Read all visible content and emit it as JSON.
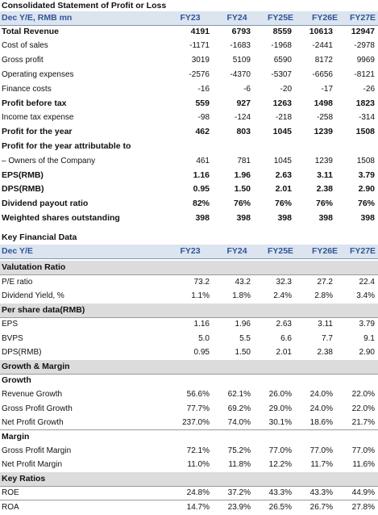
{
  "pl": {
    "title": "Consolidated Statement of Profit or Loss",
    "header": [
      "Dec Y/E, RMB mn",
      "FY23",
      "FY24",
      "FY25E",
      "FY26E",
      "FY27E"
    ],
    "rows": [
      {
        "label": "Total Revenue",
        "values": [
          "4191",
          "6793",
          "8559",
          "10613",
          "12947"
        ],
        "bold": true
      },
      {
        "label": "Cost of sales",
        "values": [
          "-1171",
          "-1683",
          "-1968",
          "-2441",
          "-2978"
        ],
        "bold": false
      },
      {
        "label": "Gross profit",
        "values": [
          "3019",
          "5109",
          "6590",
          "8172",
          "9969"
        ],
        "bold": false
      },
      {
        "label": "Operating expenses",
        "values": [
          "-2576",
          "-4370",
          "-5307",
          "-6656",
          "-8121"
        ],
        "bold": false
      },
      {
        "label": "Finance costs",
        "values": [
          "-16",
          "-6",
          "-20",
          "-17",
          "-26"
        ],
        "bold": false
      },
      {
        "label": "Profit before tax",
        "values": [
          "559",
          "927",
          "1263",
          "1498",
          "1823"
        ],
        "bold": true
      },
      {
        "label": "Income tax expense",
        "values": [
          "-98",
          "-124",
          "-218",
          "-258",
          "-314"
        ],
        "bold": false
      },
      {
        "label": "Profit for the year",
        "values": [
          "462",
          "803",
          "1045",
          "1239",
          "1508"
        ],
        "bold": true
      },
      {
        "label": "Profit for the year attributable to",
        "values": [
          "",
          "",
          "",
          "",
          ""
        ],
        "bold": true
      },
      {
        "label": "– Owners of the Company",
        "values": [
          "461",
          "781",
          "1045",
          "1239",
          "1508"
        ],
        "bold": false
      },
      {
        "label": "EPS(RMB)",
        "values": [
          "1.16",
          "1.96",
          "2.63",
          "3.11",
          "3.79"
        ],
        "bold": true
      },
      {
        "label": "DPS(RMB)",
        "values": [
          "0.95",
          "1.50",
          "2.01",
          "2.38",
          "2.90"
        ],
        "bold": true
      },
      {
        "label": "Dividend payout ratio",
        "values": [
          "82%",
          "76%",
          "76%",
          "76%",
          "76%"
        ],
        "bold": true
      },
      {
        "label": "Weighted shares outstanding",
        "values": [
          "398",
          "398",
          "398",
          "398",
          "398"
        ],
        "bold": true
      }
    ]
  },
  "kfd": {
    "title": "Key Financial Data",
    "header": [
      "Dec Y/E",
      "FY23",
      "FY24",
      "FY25E",
      "FY26E",
      "FY27E"
    ],
    "valuation": {
      "title": "Valutation Ratio",
      "rows": [
        {
          "label": "P/E ratio",
          "values": [
            "73.2",
            "43.2",
            "32.3",
            "27.2",
            "22.4"
          ]
        },
        {
          "label": "Dividend Yield, %",
          "values": [
            "1.1%",
            "1.8%",
            "2.4%",
            "2.8%",
            "3.4%"
          ]
        }
      ]
    },
    "pershare": {
      "title": "Per share data(RMB)",
      "rows": [
        {
          "label": "EPS",
          "values": [
            "1.16",
            "1.96",
            "2.63",
            "3.11",
            "3.79"
          ]
        },
        {
          "label": "BVPS",
          "values": [
            "5.0",
            "5.5",
            "6.6",
            "7.7",
            "9.1"
          ]
        },
        {
          "label": "DPS(RMB)",
          "values": [
            "0.95",
            "1.50",
            "2.01",
            "2.38",
            "2.90"
          ]
        }
      ]
    },
    "growth_margin": {
      "title": "Growth & Margin",
      "growth_title": "Growth",
      "growth_rows": [
        {
          "label": "Revenue Growth",
          "values": [
            "56.6%",
            "62.1%",
            "26.0%",
            "24.0%",
            "22.0%"
          ]
        },
        {
          "label": "Gross Profit Growth",
          "values": [
            "77.7%",
            "69.2%",
            "29.0%",
            "24.0%",
            "22.0%"
          ]
        },
        {
          "label": "Net Profit Growth",
          "values": [
            "237.0%",
            "74.0%",
            "30.1%",
            "18.6%",
            "21.7%"
          ]
        }
      ],
      "margin_title": "Margin",
      "margin_rows": [
        {
          "label": "Gross Profit Margin",
          "values": [
            "72.1%",
            "75.2%",
            "77.0%",
            "77.0%",
            "77.0%"
          ]
        },
        {
          "label": "Net Profit Margin",
          "values": [
            "11.0%",
            "11.8%",
            "12.2%",
            "11.7%",
            "11.6%"
          ]
        }
      ]
    },
    "keyratios": {
      "title": "Key Ratios",
      "rows": [
        {
          "label": "ROE",
          "values": [
            "24.8%",
            "37.2%",
            "43.3%",
            "43.3%",
            "44.9%"
          ]
        },
        {
          "label": "ROA",
          "values": [
            "14.7%",
            "23.9%",
            "26.5%",
            "26.7%",
            "27.8%"
          ]
        }
      ]
    }
  }
}
